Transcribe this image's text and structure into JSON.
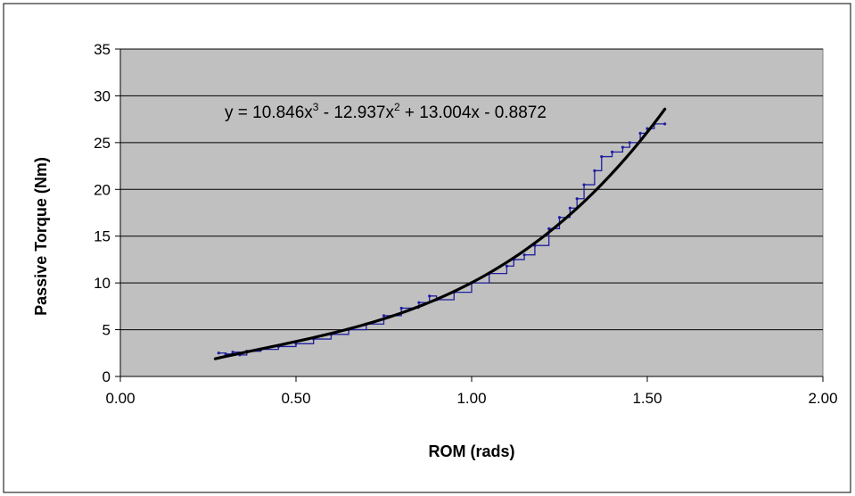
{
  "chart_data": {
    "type": "scatter",
    "title": "",
    "xlabel": "ROM (rads)",
    "ylabel": "Passive Torque (Nm)",
    "xlim": [
      0,
      2
    ],
    "ylim": [
      0,
      35
    ],
    "x_ticks": [
      "0.00",
      "0.50",
      "1.00",
      "1.50",
      "2.00"
    ],
    "y_ticks": [
      "0",
      "5",
      "10",
      "15",
      "20",
      "25",
      "30",
      "35"
    ],
    "grid": "horizontal",
    "legend": "none",
    "plot_background": "#c0c0c0",
    "trendline": {
      "type": "polynomial",
      "order": 3,
      "coefficients": [
        10.846,
        -12.937,
        13.004,
        -0.8872
      ],
      "x_range": [
        0.27,
        1.55
      ],
      "color": "#000000",
      "label": {
        "prefix": "y = 10.846x",
        "exp1": "3",
        "middle": " - 12.937x",
        "exp2": "2",
        "suffix": " + 13.004x - 0.8872"
      }
    },
    "series": [
      {
        "color": "#1f1f9f",
        "x": [
          0.28,
          0.3,
          0.32,
          0.34,
          0.36,
          0.4,
          0.45,
          0.5,
          0.55,
          0.6,
          0.65,
          0.7,
          0.75,
          0.8,
          0.85,
          0.88,
          0.9,
          0.95,
          1.0,
          1.05,
          1.1,
          1.12,
          1.15,
          1.18,
          1.22,
          1.25,
          1.28,
          1.3,
          1.32,
          1.35,
          1.37,
          1.4,
          1.43,
          1.45,
          1.48,
          1.5,
          1.52,
          1.55
        ],
        "y": [
          2.5,
          2.4,
          2.6,
          2.3,
          2.7,
          2.9,
          3.2,
          3.5,
          4.0,
          4.5,
          5.0,
          5.6,
          6.5,
          7.3,
          7.9,
          8.6,
          8.2,
          9.0,
          10.0,
          11.0,
          11.8,
          12.5,
          13.0,
          14.0,
          15.8,
          17.0,
          18.0,
          19.0,
          20.5,
          22.0,
          23.5,
          24.0,
          24.5,
          25.0,
          26.0,
          26.5,
          27.0,
          27.0
        ]
      }
    ]
  }
}
